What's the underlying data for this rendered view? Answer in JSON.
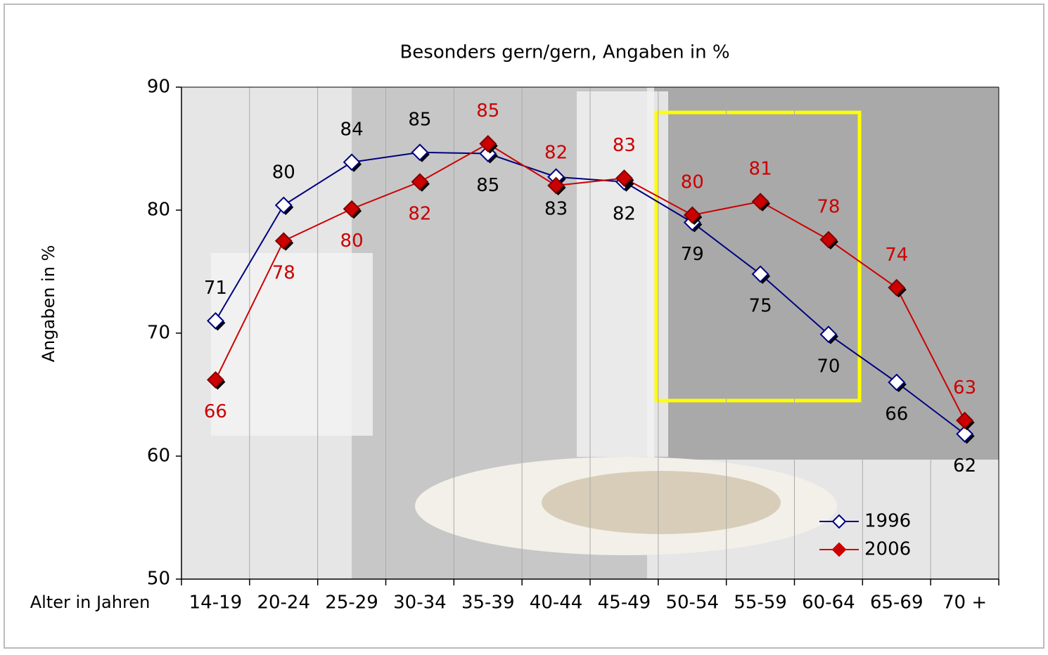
{
  "chart_data": {
    "type": "line",
    "title": "Besonders gern/gern, Angaben in %",
    "y_label": "Angaben in %",
    "x_label": "Alter in Jahren",
    "categories": [
      "14-19",
      "20-24",
      "25-29",
      "30-34",
      "35-39",
      "40-44",
      "45-49",
      "50-54",
      "55-59",
      "60-64",
      "65-69",
      "70 +"
    ],
    "series": [
      {
        "name": "1996",
        "color": "#000080",
        "values": [
          71.0,
          80.4,
          83.9,
          84.7,
          84.6,
          82.7,
          82.3,
          79.0,
          74.8,
          69.9,
          66.0,
          61.8
        ],
        "value_labels": [
          "71",
          "80",
          "84",
          "85",
          "85",
          "83",
          "82",
          "79",
          "75",
          "70",
          "66",
          "62"
        ]
      },
      {
        "name": "2006",
        "color": "#cc0000",
        "values": [
          66.2,
          77.5,
          80.1,
          82.3,
          85.4,
          82.0,
          82.6,
          79.6,
          80.7,
          77.6,
          73.7,
          62.9
        ],
        "value_labels": [
          "66",
          "78",
          "80",
          "82",
          "85",
          "82",
          "83",
          "80",
          "81",
          "78",
          "74",
          "63"
        ]
      }
    ],
    "ylim": [
      50,
      90
    ],
    "yticks": [
      50,
      60,
      70,
      80,
      90
    ],
    "grid": true
  }
}
